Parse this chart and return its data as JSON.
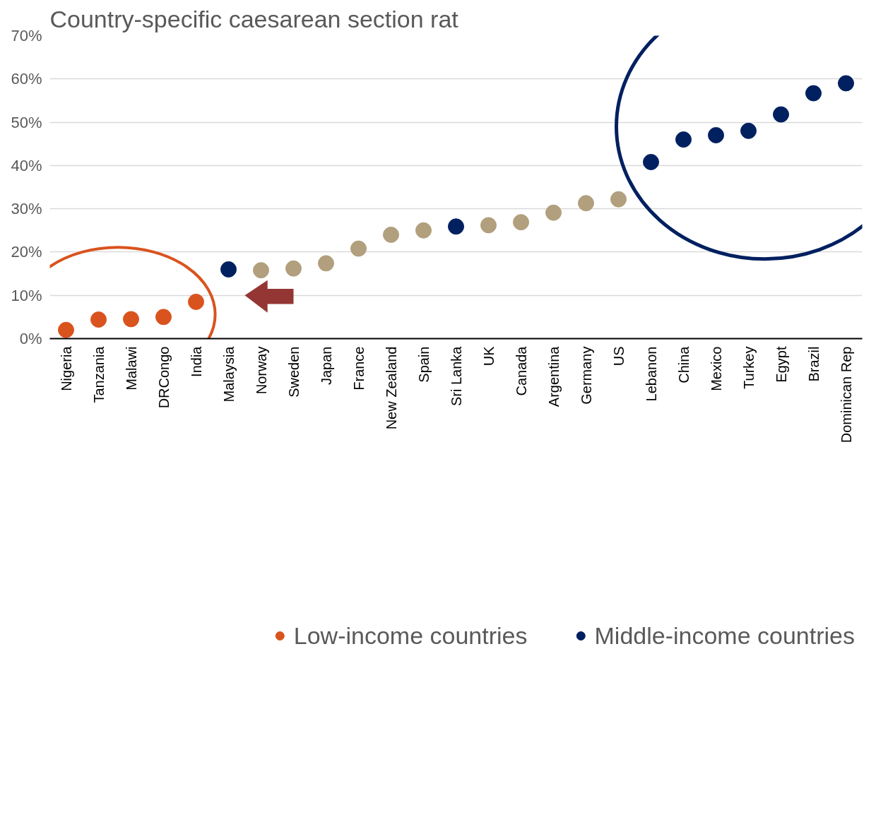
{
  "chart_data": {
    "type": "scatter",
    "title": "Country-specific caesarean section rat",
    "categories": [
      "Nigeria",
      "Tanzania",
      "Malawi",
      "DRCongo",
      "India",
      "Malaysia",
      "Norway",
      "Sweden",
      "Japan",
      "France",
      "New Zealand",
      "Spain",
      "Sri Lanka",
      "UK",
      "Canada",
      "Argentina",
      "Germany",
      "US",
      "Lebanon",
      "China",
      "Mexico",
      "Turkey",
      "Egypt",
      "Brazil",
      "Dominican Rep"
    ],
    "series": [
      {
        "name": "Low-income countries",
        "color": "#d9531e",
        "values": [
          2.0,
          4.4,
          4.5,
          5.0,
          8.5,
          null,
          null,
          null,
          null,
          null,
          null,
          null,
          null,
          null,
          null,
          null,
          null,
          null,
          null,
          null,
          null,
          null,
          null,
          null,
          null
        ]
      },
      {
        "name": "Middle-income countries",
        "color": "#002060",
        "values": [
          null,
          null,
          null,
          null,
          null,
          16.0,
          null,
          null,
          null,
          null,
          null,
          null,
          25.9,
          null,
          null,
          null,
          null,
          null,
          40.8,
          46.0,
          47.0,
          48.0,
          51.8,
          56.7,
          59.0
        ]
      },
      {
        "color": "#b19f7d",
        "values": [
          null,
          null,
          null,
          null,
          null,
          null,
          15.8,
          16.2,
          17.4,
          20.8,
          24.0,
          25.0,
          null,
          26.2,
          26.9,
          29.1,
          31.3,
          32.2,
          null,
          null,
          null,
          null,
          null,
          null,
          null
        ]
      }
    ],
    "ylim": [
      0,
      70
    ],
    "yticks": [
      {
        "value": 0,
        "label": "0%"
      },
      {
        "value": 10,
        "label": "10%"
      },
      {
        "value": 20,
        "label": "20%"
      },
      {
        "value": 30,
        "label": "30%"
      },
      {
        "value": 40,
        "label": "40%"
      },
      {
        "value": 50,
        "label": "50%"
      },
      {
        "value": 60,
        "label": "60%"
      },
      {
        "value": 70,
        "label": "70%"
      }
    ],
    "grid": "y",
    "legend": "bottom",
    "marker": "circle"
  }
}
